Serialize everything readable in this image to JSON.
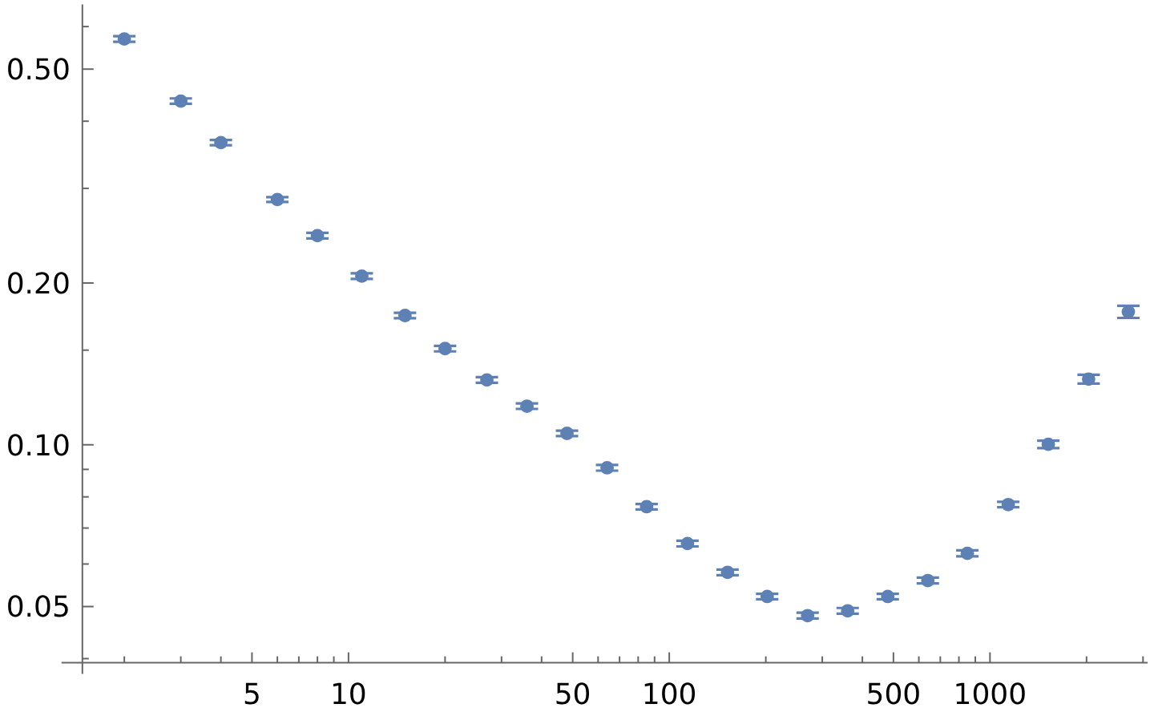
{
  "chart_data": {
    "type": "scatter",
    "log": "xy",
    "marker": "circle",
    "color": "#5e81b5",
    "x": [
      2,
      3,
      4,
      6,
      8,
      11,
      15,
      20,
      27,
      36,
      48,
      64,
      85,
      114,
      152,
      202,
      270,
      360,
      480,
      640,
      850,
      1140,
      1520,
      2030,
      2700
    ],
    "values": [
      0.569,
      0.436,
      0.365,
      0.286,
      0.245,
      0.206,
      0.174,
      0.151,
      0.132,
      0.118,
      0.105,
      0.0906,
      0.0767,
      0.0655,
      0.0579,
      0.0522,
      0.0481,
      0.0491,
      0.0522,
      0.0559,
      0.0628,
      0.0774,
      0.1002,
      0.1325,
      0.1768
    ],
    "errors": [
      0.007,
      0.005,
      0.004,
      0.003,
      0.003,
      0.0025,
      0.002,
      0.0018,
      0.0016,
      0.0014,
      0.0012,
      0.0011,
      0.0009,
      0.0008,
      0.0007,
      0.0006,
      0.0006,
      0.0006,
      0.0006,
      0.0007,
      0.0008,
      0.0009,
      0.0016,
      0.0025,
      0.0046
    ],
    "xlim": [
      1.48,
      3100
    ],
    "ylim": [
      0.0393,
      0.66
    ],
    "xticks": [
      {
        "value": 2,
        "label": null
      },
      {
        "value": 3,
        "label": null
      },
      {
        "value": 4,
        "label": null
      },
      5,
      {
        "value": 6,
        "label": null
      },
      {
        "value": 7,
        "label": null
      },
      {
        "value": 8,
        "label": null
      },
      {
        "value": 9,
        "label": null
      },
      10,
      {
        "value": 20,
        "label": null
      },
      {
        "value": 30,
        "label": null
      },
      {
        "value": 40,
        "label": null
      },
      50,
      {
        "value": 60,
        "label": null
      },
      {
        "value": 70,
        "label": null
      },
      {
        "value": 80,
        "label": null
      },
      {
        "value": 90,
        "label": null
      },
      100,
      {
        "value": 200,
        "label": null
      },
      {
        "value": 300,
        "label": null
      },
      {
        "value": 400,
        "label": null
      },
      500,
      {
        "value": 600,
        "label": null
      },
      {
        "value": 700,
        "label": null
      },
      {
        "value": 800,
        "label": null
      },
      {
        "value": 900,
        "label": null
      },
      1000,
      {
        "value": 2000,
        "label": null
      },
      {
        "value": 3000,
        "label": null
      }
    ],
    "yticks": [
      {
        "value": 0.04,
        "label": null
      },
      0.05,
      {
        "value": 0.06,
        "label": null
      },
      {
        "value": 0.07,
        "label": null
      },
      {
        "value": 0.08,
        "label": null
      },
      {
        "value": 0.09,
        "label": null
      },
      {
        "value": 0.1,
        "label": "0.10"
      },
      {
        "value": 0.15,
        "label": null
      },
      {
        "value": 0.2,
        "label": "0.20"
      },
      {
        "value": 0.3,
        "label": null
      },
      {
        "value": 0.4,
        "label": null
      },
      {
        "value": 0.5,
        "label": "0.50"
      },
      {
        "value": 0.6,
        "label": null
      }
    ]
  }
}
